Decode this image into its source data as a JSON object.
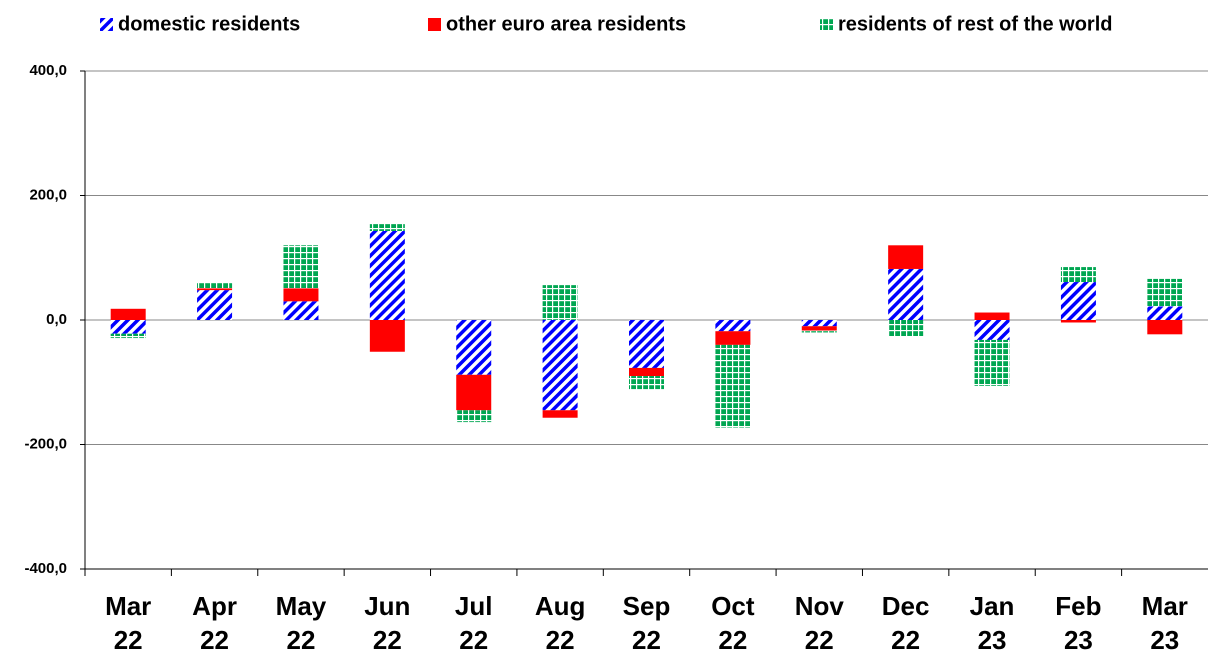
{
  "chart_data": {
    "type": "bar",
    "stacked": true,
    "categories": [
      "Mar 22",
      "Apr 22",
      "May 22",
      "Jun 22",
      "Jul 22",
      "Aug 22",
      "Sep 22",
      "Oct 22",
      "Nov 22",
      "Dec 22",
      "Jan 23",
      "Feb 23",
      "Mar 23"
    ],
    "series": [
      {
        "name": "domestic residents",
        "color": "#0000ff",
        "pattern": "hatch",
        "values": [
          -22,
          48,
          30,
          143,
          -88,
          -145,
          -77,
          -18,
          -10,
          82,
          -32,
          61,
          22
        ]
      },
      {
        "name": "other euro area residents",
        "color": "#ff0000",
        "pattern": "solid",
        "values": [
          18,
          3,
          21,
          -51,
          -57,
          -12,
          -13,
          -22,
          -7,
          38,
          12,
          -4,
          -23
        ]
      },
      {
        "name": "residents of rest of the world",
        "color": "#00a651",
        "pattern": "grid",
        "values": [
          -7,
          10,
          69,
          11,
          -19,
          56,
          -21,
          -133,
          -3,
          -27,
          -74,
          24,
          44
        ]
      }
    ],
    "ylim": [
      -400,
      400
    ],
    "yticks": [
      {
        "value": -400,
        "label": "-400,0"
      },
      {
        "value": -200,
        "label": "-200,0"
      },
      {
        "value": 0,
        "label": "0,0"
      },
      {
        "value": 200,
        "label": "200,0"
      },
      {
        "value": 400,
        "label": "400,0"
      }
    ],
    "grid": true,
    "legend": "top"
  }
}
